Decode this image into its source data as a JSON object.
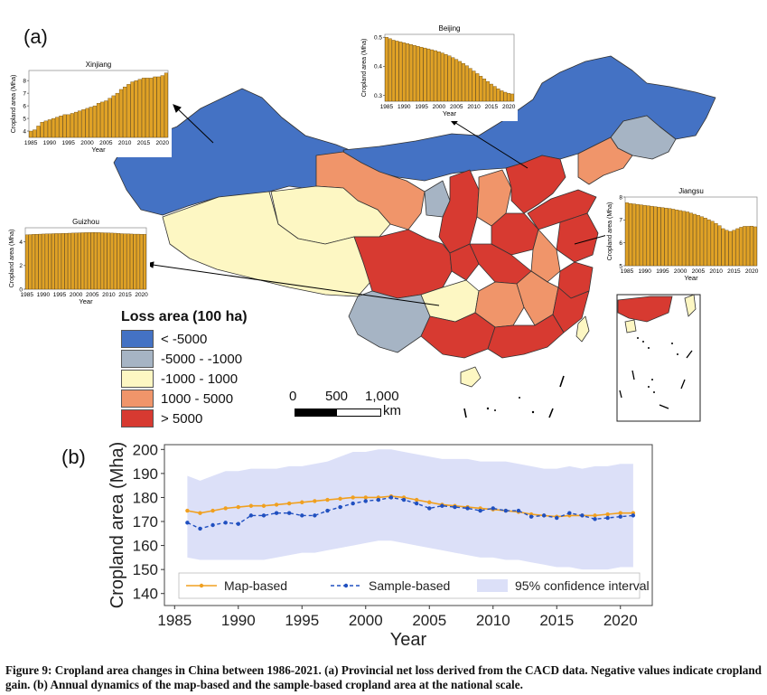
{
  "panel_a": {
    "label": "(a)",
    "legend": {
      "title": "Loss area (100 ha)",
      "items": [
        {
          "label": "< -5000",
          "color": "#4472c4"
        },
        {
          "label": "-5000 - -1000",
          "color": "#a6b4c4"
        },
        {
          "label": "-1000 - 1000",
          "color": "#fdf7c3"
        },
        {
          "label": "1000 - 5000",
          "color": "#f0956a"
        },
        {
          "label": "> 5000",
          "color": "#d73a31"
        }
      ]
    },
    "scale_bar": {
      "labels": [
        "0",
        "500",
        "1,000"
      ],
      "unit": "km"
    }
  },
  "panel_b": {
    "label": "(b)"
  },
  "caption": "Figure 9: Cropland area changes in China between 1986-2021. (a) Provincial net loss derived from the CACD data. Negative values indicate cropland gain. (b) Annual dynamics of the map-based and the sample-based cropland area at the national scale.",
  "chart_data": [
    {
      "id": "xinjiang",
      "type": "bar",
      "title": "Xinjiang",
      "xlabel": "Year",
      "ylabel": "Cropland area (Mha)",
      "years": [
        1985,
        1986,
        1987,
        1988,
        1989,
        1990,
        1991,
        1992,
        1993,
        1994,
        1995,
        1996,
        1997,
        1998,
        1999,
        2000,
        2001,
        2002,
        2003,
        2004,
        2005,
        2006,
        2007,
        2008,
        2009,
        2010,
        2011,
        2012,
        2013,
        2014,
        2015,
        2016,
        2017,
        2018,
        2019,
        2020,
        2021
      ],
      "values": [
        4.0,
        4.1,
        4.4,
        4.7,
        4.8,
        4.9,
        5.0,
        5.1,
        5.2,
        5.3,
        5.3,
        5.4,
        5.5,
        5.6,
        5.7,
        5.8,
        5.9,
        6.0,
        6.2,
        6.3,
        6.4,
        6.6,
        6.8,
        7.0,
        7.3,
        7.5,
        7.7,
        7.9,
        8.0,
        8.1,
        8.2,
        8.2,
        8.2,
        8.3,
        8.3,
        8.4,
        8.6
      ],
      "ylim": [
        3.5,
        8.8
      ],
      "yticks": [
        "4",
        "5",
        "6",
        "7",
        "8"
      ],
      "xtick_labels": [
        "1985",
        "1990",
        "1995",
        "2000",
        "2005",
        "2010",
        "2015",
        "2020"
      ]
    },
    {
      "id": "beijing",
      "type": "bar",
      "title": "Beijing",
      "xlabel": "Year",
      "ylabel": "Cropland area (Mha)",
      "years": [
        1985,
        1986,
        1987,
        1988,
        1989,
        1990,
        1991,
        1992,
        1993,
        1994,
        1995,
        1996,
        1997,
        1998,
        1999,
        2000,
        2001,
        2002,
        2003,
        2004,
        2005,
        2006,
        2007,
        2008,
        2009,
        2010,
        2011,
        2012,
        2013,
        2014,
        2015,
        2016,
        2017,
        2018,
        2019,
        2020,
        2021
      ],
      "values": [
        0.5,
        0.495,
        0.49,
        0.487,
        0.484,
        0.481,
        0.478,
        0.475,
        0.472,
        0.469,
        0.466,
        0.463,
        0.46,
        0.457,
        0.454,
        0.45,
        0.446,
        0.441,
        0.436,
        0.43,
        0.424,
        0.417,
        0.41,
        0.402,
        0.393,
        0.384,
        0.375,
        0.366,
        0.357,
        0.348,
        0.339,
        0.331,
        0.323,
        0.316,
        0.311,
        0.307,
        0.305
      ],
      "ylim": [
        0.28,
        0.51
      ],
      "yticks": [
        "0.3",
        "0.4",
        "0.5"
      ],
      "xtick_labels": [
        "1985",
        "1990",
        "1995",
        "2000",
        "2005",
        "2010",
        "2015",
        "2020"
      ]
    },
    {
      "id": "jiangsu",
      "type": "bar",
      "title": "Jiangsu",
      "xlabel": "Year",
      "ylabel": "Cropland area (Mha)",
      "years": [
        1985,
        1986,
        1987,
        1988,
        1989,
        1990,
        1991,
        1992,
        1993,
        1994,
        1995,
        1996,
        1997,
        1998,
        1999,
        2000,
        2001,
        2002,
        2003,
        2004,
        2005,
        2006,
        2007,
        2008,
        2009,
        2010,
        2011,
        2012,
        2013,
        2014,
        2015,
        2016,
        2017,
        2018,
        2019,
        2020,
        2021
      ],
      "values": [
        7.75,
        7.72,
        7.7,
        7.68,
        7.66,
        7.64,
        7.62,
        7.6,
        7.58,
        7.56,
        7.54,
        7.52,
        7.5,
        7.47,
        7.44,
        7.41,
        7.38,
        7.35,
        7.3,
        7.25,
        7.2,
        7.14,
        7.08,
        7.01,
        6.94,
        6.85,
        6.75,
        6.62,
        6.55,
        6.5,
        6.55,
        6.62,
        6.68,
        6.72,
        6.72,
        6.73,
        6.7
      ],
      "ylim": [
        5.0,
        8.0
      ],
      "yticks": [
        "5",
        "6",
        "7",
        "8"
      ],
      "xtick_labels": [
        "1985",
        "1990",
        "1995",
        "2000",
        "2005",
        "2010",
        "2015",
        "2020"
      ]
    },
    {
      "id": "guizhou",
      "type": "bar",
      "title": "Guizhou",
      "xlabel": "Year",
      "ylabel": "Cropland area (Mha)",
      "years": [
        1985,
        1986,
        1987,
        1988,
        1989,
        1990,
        1991,
        1992,
        1993,
        1994,
        1995,
        1996,
        1997,
        1998,
        1999,
        2000,
        2001,
        2002,
        2003,
        2004,
        2005,
        2006,
        2007,
        2008,
        2009,
        2010,
        2011,
        2012,
        2013,
        2014,
        2015,
        2016,
        2017,
        2018,
        2019,
        2020,
        2021
      ],
      "values": [
        4.6,
        4.62,
        4.64,
        4.65,
        4.66,
        4.67,
        4.68,
        4.69,
        4.7,
        4.71,
        4.71,
        4.72,
        4.73,
        4.74,
        4.75,
        4.76,
        4.77,
        4.78,
        4.79,
        4.79,
        4.8,
        4.8,
        4.79,
        4.78,
        4.77,
        4.76,
        4.75,
        4.74,
        4.72,
        4.7,
        4.69,
        4.68,
        4.67,
        4.66,
        4.66,
        4.65,
        4.64
      ],
      "ylim": [
        0,
        5.2
      ],
      "yticks": [
        "0",
        "2",
        "4"
      ],
      "xtick_labels": [
        "1985",
        "1990",
        "1995",
        "2000",
        "2005",
        "2010",
        "2015",
        "2020"
      ]
    },
    {
      "id": "national",
      "type": "line",
      "xlabel": "Year",
      "ylabel": "Cropland area (Mha)",
      "x": [
        1986,
        1987,
        1988,
        1989,
        1990,
        1991,
        1992,
        1993,
        1994,
        1995,
        1996,
        1997,
        1998,
        1999,
        2000,
        2001,
        2002,
        2003,
        2004,
        2005,
        2006,
        2007,
        2008,
        2009,
        2010,
        2011,
        2012,
        2013,
        2014,
        2015,
        2016,
        2017,
        2018,
        2019,
        2020,
        2021
      ],
      "series": [
        {
          "name": "Map-based",
          "color": "#f0a020",
          "values": [
            174.5,
            173.5,
            174.5,
            175.5,
            176.0,
            176.5,
            176.5,
            177.0,
            177.5,
            178.0,
            178.5,
            179.0,
            179.5,
            180.0,
            180.0,
            180.0,
            180.5,
            180.0,
            179.0,
            178.0,
            177.0,
            176.5,
            176.0,
            175.5,
            175.0,
            174.5,
            174.0,
            173.0,
            172.5,
            172.0,
            172.5,
            172.5,
            172.5,
            173.0,
            173.5,
            173.5
          ]
        },
        {
          "name": "Sample-based",
          "color": "#2050c0",
          "values": [
            169.5,
            167.0,
            168.5,
            169.5,
            169.0,
            172.5,
            172.5,
            173.5,
            173.5,
            172.5,
            172.5,
            174.5,
            176.0,
            177.5,
            178.5,
            179.0,
            180.0,
            179.0,
            177.5,
            175.5,
            176.5,
            176.0,
            175.5,
            174.5,
            175.5,
            174.5,
            174.5,
            172.0,
            172.5,
            171.5,
            173.5,
            172.5,
            171.0,
            171.5,
            172.0,
            172.5
          ]
        },
        {
          "name": "95% confidence interval",
          "color": "#dce0f8",
          "lower": [
            155.0,
            154.0,
            154.0,
            154.0,
            154.0,
            154.0,
            154.0,
            155.0,
            156.0,
            157.0,
            157.0,
            158.0,
            159.0,
            160.0,
            161.0,
            162.0,
            162.0,
            161.0,
            160.0,
            159.0,
            158.0,
            157.0,
            156.0,
            155.0,
            155.0,
            154.0,
            154.0,
            153.0,
            152.0,
            151.0,
            151.0,
            150.0,
            150.0,
            150.0,
            151.0,
            151.0
          ],
          "upper": [
            189.0,
            187.0,
            189.0,
            191.0,
            191.0,
            192.0,
            192.0,
            192.0,
            193.0,
            193.0,
            194.0,
            195.0,
            197.0,
            199.0,
            199.0,
            200.0,
            200.0,
            199.0,
            198.0,
            197.0,
            196.0,
            196.0,
            196.0,
            195.0,
            195.0,
            195.0,
            194.0,
            193.0,
            192.0,
            192.0,
            193.0,
            192.0,
            193.0,
            193.0,
            194.0,
            194.0
          ]
        }
      ],
      "ylim": [
        135,
        202
      ],
      "yticks": [
        "140",
        "150",
        "160",
        "170",
        "180",
        "190",
        "200"
      ],
      "xticks": [
        1985,
        1990,
        1995,
        2000,
        2005,
        2010,
        2015,
        2020
      ],
      "xtick_labels": [
        "1985",
        "1990",
        "1995",
        "2000",
        "2005",
        "2010",
        "2015",
        "2020"
      ],
      "xlim": [
        1984.2,
        2022.5
      ]
    }
  ]
}
